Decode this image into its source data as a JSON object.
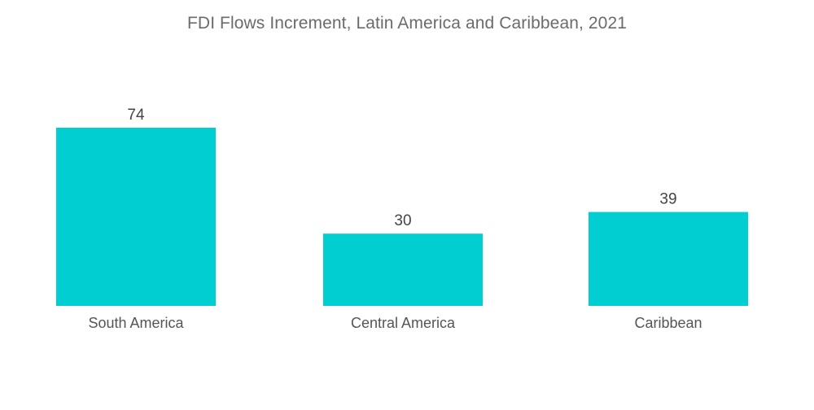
{
  "chart_data": {
    "type": "bar",
    "title": "FDI Flows Increment, Latin America and Caribbean, 2021",
    "categories": [
      "South America",
      "Central America",
      "Caribbean"
    ],
    "values": [
      74,
      30,
      39
    ],
    "xlabel": "",
    "ylabel": "",
    "ylim": [
      0,
      74
    ],
    "grid": false,
    "legend": "none",
    "bar_color": "#00CED1"
  }
}
